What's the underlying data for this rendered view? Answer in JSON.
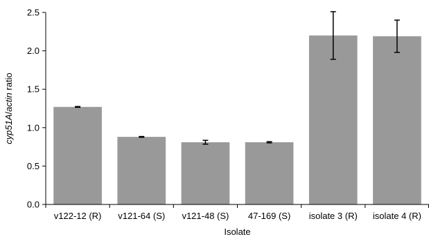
{
  "chart_data": {
    "type": "bar",
    "title": "",
    "xlabel": "Isolate",
    "ylabel_parts": [
      {
        "text": "cyp51A",
        "italic": true
      },
      {
        "text": "/",
        "italic": false
      },
      {
        "text": "actin",
        "italic": true
      },
      {
        "text": " ratio",
        "italic": false
      }
    ],
    "categories": [
      "v122-12 (R)",
      "v121-64 (S)",
      "v121-48 (S)",
      "47-169 (S)",
      "isolate 3 (R)",
      "isolate 4 (R)"
    ],
    "values": [
      1.27,
      0.88,
      0.81,
      0.81,
      2.2,
      2.19
    ],
    "errors": [
      0.005,
      0.005,
      0.025,
      0.008,
      0.31,
      0.21
    ],
    "ylim": [
      0,
      2.5
    ],
    "yticks": [
      "0.0",
      "0.5",
      "1.0",
      "1.5",
      "2.0",
      "2.5"
    ],
    "bar_color": "#999999",
    "axis_color": "#000000",
    "grid": false,
    "legend": "none"
  }
}
